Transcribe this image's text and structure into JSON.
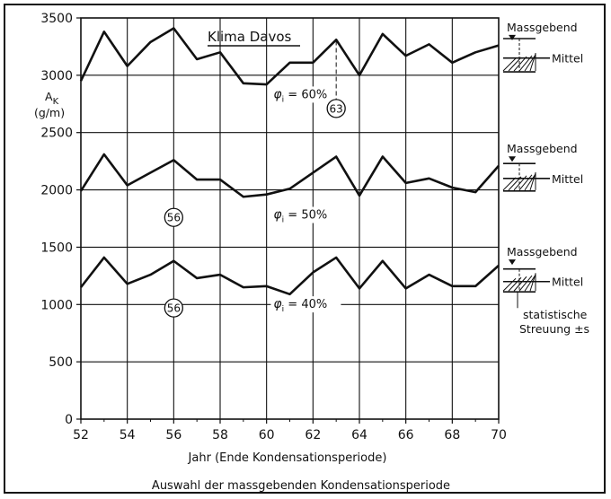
{
  "chart_data": {
    "type": "line",
    "title": "Klima Davos",
    "ylabel_line1": "A",
    "ylabel_sub": "K",
    "ylabel_line2": "(g/m)",
    "xlabel": "Jahr (Ende Kondensationsperiode)",
    "caption": "Auswahl der massgebenden Kondensationsperiode",
    "xlim": [
      52,
      70
    ],
    "ylim": [
      0,
      3500
    ],
    "x_ticks": [
      "52",
      "54",
      "56",
      "58",
      "60",
      "62",
      "64",
      "66",
      "68",
      "70"
    ],
    "x_tick_values": [
      52,
      54,
      56,
      58,
      60,
      62,
      64,
      66,
      68,
      70
    ],
    "y_ticks": [
      "0",
      "500",
      "1000",
      "1500",
      "2000",
      "2500",
      "3000",
      "3500"
    ],
    "y_tick_values": [
      0,
      500,
      1000,
      1500,
      2000,
      2500,
      3000,
      3500
    ],
    "grid": true,
    "x": [
      52,
      53,
      54,
      55,
      56,
      57,
      58,
      59,
      60,
      61,
      62,
      63,
      64,
      65,
      66,
      67,
      68,
      69,
      70
    ],
    "series": [
      {
        "name": "φi = 60%",
        "label_prefix": "φ",
        "label_sub": "i",
        "label_rest": " = 60%",
        "values": [
          2950,
          3380,
          3080,
          3290,
          3410,
          3140,
          3200,
          2930,
          2920,
          3110,
          3110,
          3310,
          3000,
          3360,
          3170,
          3270,
          3110,
          3200,
          3260
        ],
        "marker_label": "63",
        "marker_x": 63
      },
      {
        "name": "φi = 50%",
        "label_prefix": "φ",
        "label_sub": "i",
        "label_rest": " = 50%",
        "values": [
          1990,
          2310,
          2040,
          2150,
          2260,
          2090,
          2090,
          1940,
          1960,
          2010,
          2150,
          2290,
          1950,
          2290,
          2060,
          2100,
          2020,
          1980,
          2210
        ],
        "marker_label": "56",
        "marker_x": 56
      },
      {
        "name": "φi = 40%",
        "label_prefix": "φ",
        "label_sub": "i",
        "label_rest": " = 40%",
        "values": [
          1150,
          1410,
          1180,
          1260,
          1380,
          1230,
          1260,
          1150,
          1160,
          1090,
          1280,
          1410,
          1140,
          1380,
          1140,
          1260,
          1160,
          1160,
          1340
        ],
        "marker_label": "56",
        "marker_x": 56
      }
    ],
    "annotations": {
      "massgebend": "Massgebend",
      "mittel": "Mittel",
      "streuung_line1": "statistische",
      "streuung_line2": "Streuung ±s"
    },
    "colors": {
      "line": "#111111",
      "grid": "#111111",
      "background": "#ffffff"
    }
  }
}
